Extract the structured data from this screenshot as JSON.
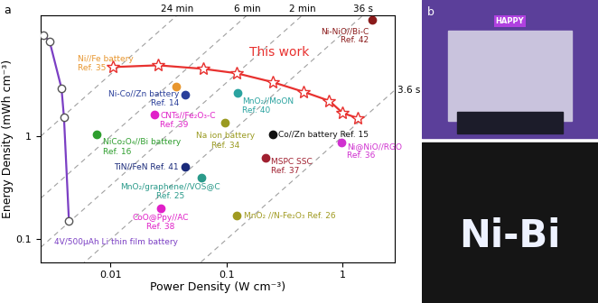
{
  "chart_data": {
    "type": "scatter",
    "panel_label": "a",
    "xlabel": "Power Density (W cm⁻³)",
    "ylabel": "Energy Density (mWh cm⁻³)",
    "log": true,
    "xlim": [
      0.0025,
      2.8
    ],
    "ylim": [
      0.06,
      15
    ],
    "xticks": [
      0.01,
      0.1,
      1
    ],
    "yticks": [
      0.1,
      1
    ],
    "time_lines": [
      {
        "seconds": 1440,
        "label": "24 min"
      },
      {
        "seconds": 360,
        "label": "6 min"
      },
      {
        "seconds": 120,
        "label": "2 min"
      },
      {
        "seconds": 36,
        "label": "36 s"
      },
      {
        "seconds": 3.6,
        "label": "3.6 s"
      }
    ],
    "series": [
      {
        "name": "This work",
        "color": "#e8312f",
        "marker": "star",
        "line_style": "solid",
        "x": [
          0.0105,
          0.0257,
          0.0625,
          0.122,
          0.248,
          0.461,
          0.764,
          1.0,
          1.35
        ],
        "y": [
          4.7,
          4.89,
          4.52,
          4.09,
          3.36,
          2.7,
          2.21,
          1.68,
          1.5
        ]
      },
      {
        "name": "4V/500µAh Li thin film battery",
        "color": "#7b3fc4",
        "marker": "circle",
        "line_style": "solid",
        "x": [
          0.00265,
          0.00298,
          0.00378,
          0.00397,
          0.00438
        ],
        "y": [
          9.6,
          8.4,
          2.92,
          1.52,
          0.15
        ]
      },
      {
        "name": "Ni//Fe battery\nRef. 35",
        "color": "#e8962e",
        "marker": "circle",
        "line_style": "none",
        "x": [
          0.037
        ],
        "y": [
          3.04
        ]
      },
      {
        "name": "Ni-Co//Zn battery\nRef. 14",
        "color": "#2a3f9a",
        "marker": "circle",
        "line_style": "none",
        "x": [
          0.0439
        ],
        "y": [
          2.54
        ]
      },
      {
        "name": "MnO₂//MoON\nRef. 40",
        "color": "#2aa3a0",
        "marker": "circle",
        "line_style": "none",
        "x": [
          0.124
        ],
        "y": [
          2.64
        ]
      },
      {
        "name": "CNTs//Fe₂O₃-C\nRef. 39",
        "color": "#e020c8",
        "marker": "circle",
        "line_style": "none",
        "x": [
          0.0239
        ],
        "y": [
          1.61
        ]
      },
      {
        "name": "Na ion battery\nRef. 34",
        "color": "#9a9a20",
        "marker": "circle",
        "line_style": "none",
        "x": [
          0.097
        ],
        "y": [
          1.35
        ]
      },
      {
        "name": "Co//Zn battery Ref. 15",
        "color": "#111111",
        "marker": "circle",
        "line_style": "none",
        "x": [
          0.248
        ],
        "y": [
          1.04
        ]
      },
      {
        "name": "NiCo₂O₄//Bi battery\nRef. 16",
        "color": "#2e9e2e",
        "marker": "circle",
        "line_style": "none",
        "x": [
          0.00764
        ],
        "y": [
          1.04
        ]
      },
      {
        "name": "Ni@NiO//RGO\nRef. 36",
        "color": "#d030d0",
        "marker": "circle",
        "line_style": "none",
        "x": [
          0.98
        ],
        "y": [
          0.87
        ]
      },
      {
        "name": "MSPC SSC\nRef. 37",
        "color": "#a02030",
        "marker": "circle",
        "line_style": "none",
        "x": [
          0.217
        ],
        "y": [
          0.62
        ]
      },
      {
        "name": "TiN//FeN Ref. 41",
        "color": "#1a2a7a",
        "marker": "circle",
        "line_style": "none",
        "x": [
          0.044
        ],
        "y": [
          0.5
        ]
      },
      {
        "name": "MnO₂/graphene//VOS@C\nRef. 25",
        "color": "#2a9a8a",
        "marker": "circle",
        "line_style": "none",
        "x": [
          0.0604
        ],
        "y": [
          0.4
        ]
      },
      {
        "name": "CoO@Ppy//AC\nRef. 38",
        "color": "#e020c8",
        "marker": "circle",
        "line_style": "none",
        "x": [
          0.027
        ],
        "y": [
          0.2
        ]
      },
      {
        "name": "MnO₂ //N-Fe₂O₃ Ref. 26",
        "color": "#a09a20",
        "marker": "circle",
        "line_style": "none",
        "x": [
          0.122
        ],
        "y": [
          0.171
        ]
      },
      {
        "name": "Ni-NiO//Bi-C\nRef. 42",
        "color": "#8a1a1a",
        "marker": "circle",
        "line_style": "none",
        "x": [
          1.8
        ],
        "y": [
          13.5
        ]
      }
    ]
  },
  "panel_b": {
    "label": "b",
    "texts": [
      "HAPPY",
      "Ni-Bi"
    ]
  }
}
